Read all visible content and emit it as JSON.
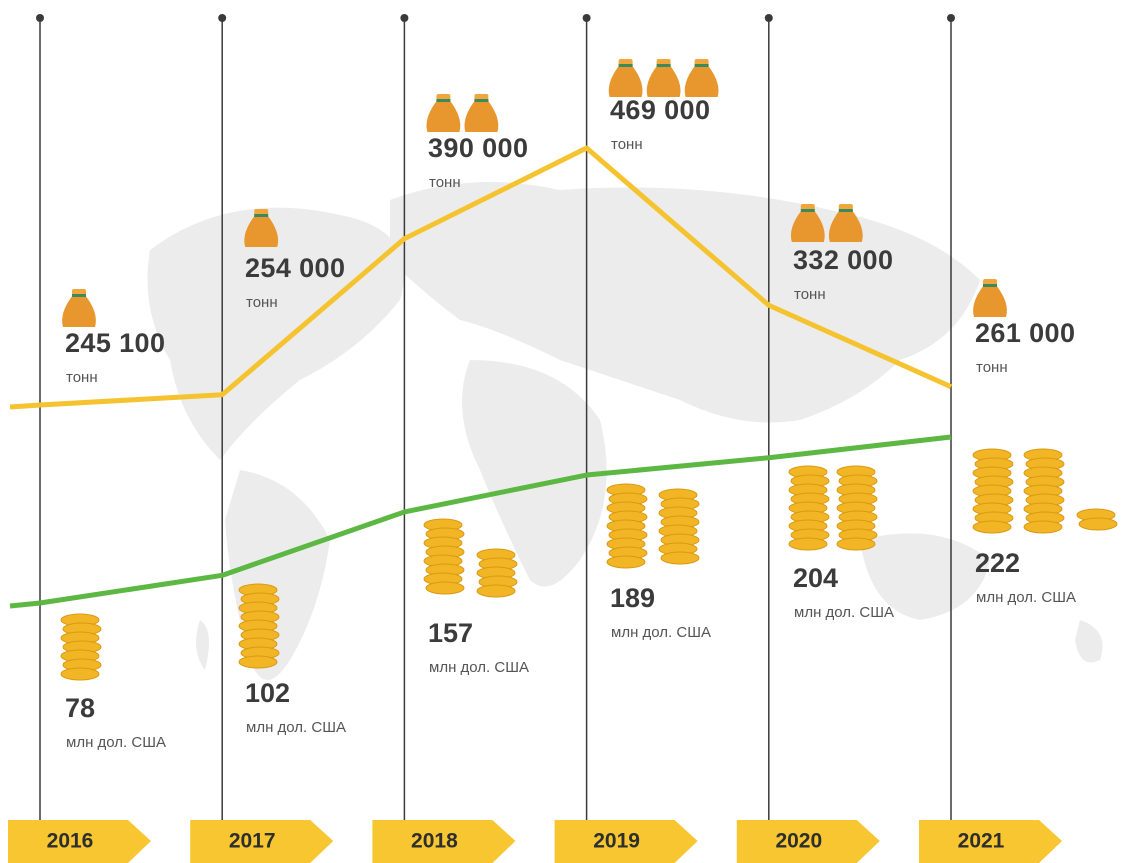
{
  "chart_data": {
    "type": "line",
    "categories": [
      "2016",
      "2017",
      "2018",
      "2019",
      "2020",
      "2021"
    ],
    "series": [
      {
        "color": "#f5c330",
        "unit": "тонн",
        "values": [
          245100,
          254000,
          390000,
          469000,
          332000,
          261000
        ],
        "value_labels": [
          "245 100",
          "254 000",
          "390 000",
          "469 000",
          "332 000",
          "261 000"
        ]
      },
      {
        "color": "#5cb743",
        "unit": "млн дол. США",
        "values": [
          78,
          102,
          157,
          189,
          204,
          222
        ]
      }
    ]
  }
}
